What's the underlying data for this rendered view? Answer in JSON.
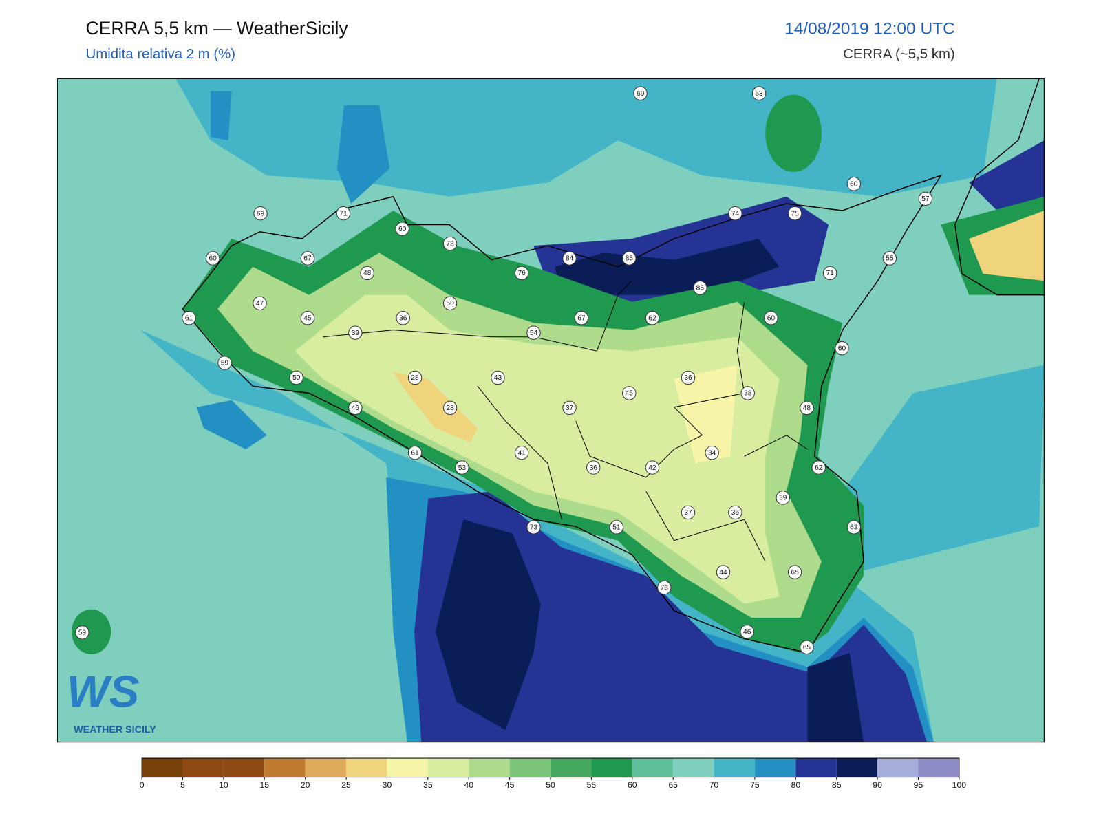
{
  "header": {
    "title": "CERRA 5,5 km — WeatherSicily",
    "subtitle": "Umidita relativa 2 m (%)",
    "datetime": "14/08/2019 12:00 UTC",
    "model": "CERRA (~5,5 km)"
  },
  "stations": [
    69,
    63,
    60,
    57,
    69,
    71,
    60,
    73,
    74,
    75,
    84,
    85,
    55,
    60,
    67,
    76,
    71,
    48,
    85,
    47,
    45,
    36,
    50,
    61,
    67,
    62,
    60,
    39,
    54,
    60,
    59,
    50,
    28,
    43,
    36,
    45,
    38,
    46,
    28,
    37,
    48,
    34,
    61,
    41,
    53,
    36,
    42,
    62,
    39,
    37,
    36,
    73,
    51,
    63,
    44,
    65,
    73,
    46,
    65,
    59
  ],
  "colorbar": {
    "ticks": [
      0,
      5,
      10,
      15,
      20,
      25,
      30,
      35,
      40,
      45,
      50,
      55,
      60,
      65,
      70,
      75,
      80,
      85,
      90,
      95,
      100
    ],
    "colors": [
      "#774009",
      "#8e4a12",
      "#8e4a12",
      "#c07c2e",
      "#dcaa58",
      "#f0d47c",
      "#f6f5a8",
      "#d8eda0",
      "#aedc8c",
      "#7cc47a",
      "#44a95e",
      "#1f9850",
      "#5cbf9a",
      "#7ecfbd",
      "#43b5c6",
      "#2290c2",
      "#253494",
      "#0b1d57",
      "#a5add8",
      "#8d8cc6"
    ]
  },
  "logo": {
    "mark": "WS",
    "name": "WEATHER SICILY"
  }
}
